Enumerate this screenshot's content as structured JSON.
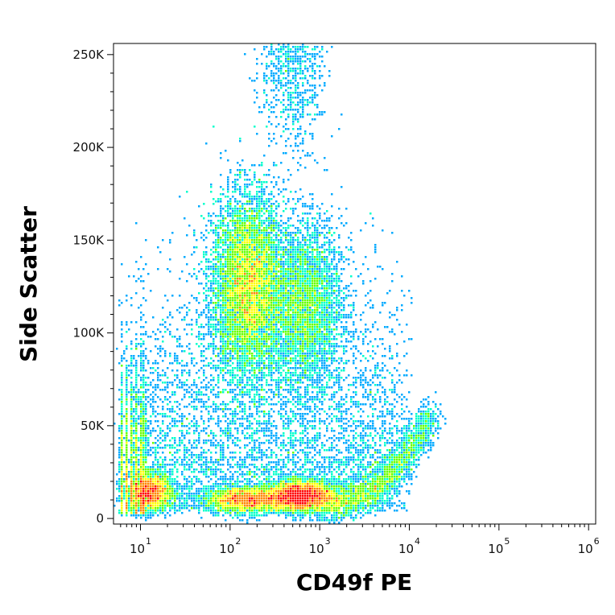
{
  "chart_data": {
    "type": "scatter",
    "subtype": "flow-cytometry density dot plot (pseudocolor)",
    "xlabel": "CD49f PE",
    "ylabel": "Side Scatter",
    "x_scale": "log",
    "xlim": [
      5,
      1200000
    ],
    "ylim": [
      -3000,
      256000
    ],
    "x_ticks": [
      {
        "value": 10,
        "base": "10",
        "exp": "1"
      },
      {
        "value": 100,
        "base": "10",
        "exp": "2"
      },
      {
        "value": 1000,
        "base": "10",
        "exp": "3"
      },
      {
        "value": 10000,
        "base": "10",
        "exp": "4"
      },
      {
        "value": 100000,
        "base": "10",
        "exp": "5"
      },
      {
        "value": 1000000,
        "base": "10",
        "exp": "6"
      }
    ],
    "y_ticks": [
      {
        "value": 0,
        "label": "0"
      },
      {
        "value": 50000,
        "label": "50K"
      },
      {
        "value": 100000,
        "label": "100K"
      },
      {
        "value": 150000,
        "label": "150K"
      },
      {
        "value": 200000,
        "label": "200K"
      },
      {
        "value": 250000,
        "label": "250K"
      }
    ],
    "populations": [
      {
        "center_x": 160,
        "center_y": 125000,
        "spread_log_x": 0.2,
        "spread_y": 24000,
        "weight": 0.27
      },
      {
        "center_x": 700,
        "center_y": 115000,
        "spread_log_x": 0.2,
        "spread_y": 22000,
        "weight": 0.12
      },
      {
        "center_x": 600,
        "center_y": 12000,
        "spread_log_x": 0.18,
        "spread_y": 4000,
        "weight": 0.15
      },
      {
        "center_x": 150,
        "center_y": 10000,
        "spread_log_x": 0.22,
        "spread_y": 3500,
        "weight": 0.09
      },
      {
        "center_x": 13,
        "center_y": 14000,
        "spread_log_x": 0.12,
        "spread_y": 5000,
        "weight": 0.08
      }
    ],
    "colormap": [
      "#0000ff",
      "#00aaff",
      "#00ffcc",
      "#66ff00",
      "#ffff00",
      "#ff8800",
      "#ff0000"
    ],
    "grid": false,
    "legend": "none"
  }
}
